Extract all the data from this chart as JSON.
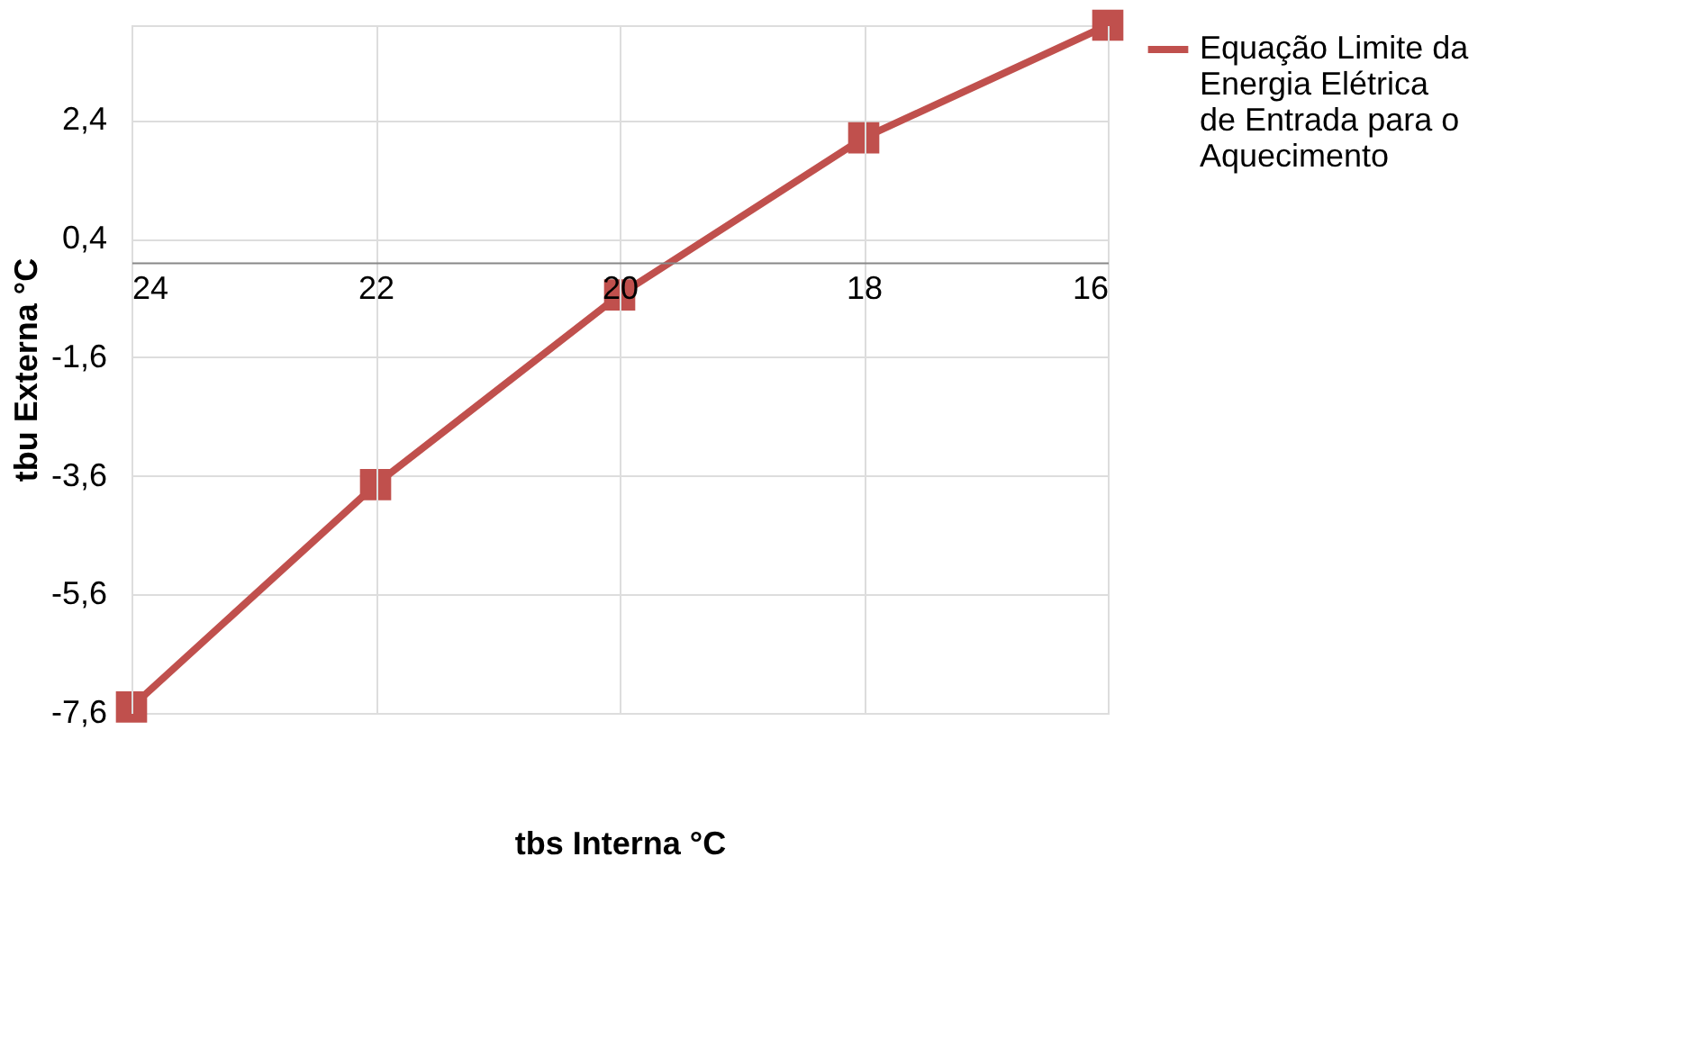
{
  "chart_data": {
    "type": "line",
    "xlabel": "tbs Interna °C",
    "ylabel": "tbu Externa °C",
    "categories": [
      "24",
      "22",
      "20",
      "18",
      "16"
    ],
    "series": [
      {
        "name": "Equação Limite da Energia Elétrica de Entrada para o Aquecimento",
        "color": "#c0504d",
        "values": [
          -7.5,
          -3.75,
          -0.55,
          2.1,
          4.0
        ]
      }
    ],
    "ylim": [
      -7.6,
      4.0
    ],
    "yticks": [
      {
        "value": -7.6,
        "label": "-7,6"
      },
      {
        "value": -5.6,
        "label": "-5,6"
      },
      {
        "value": -3.6,
        "label": "-3,6"
      },
      {
        "value": -1.6,
        "label": "-1,6"
      },
      {
        "value": 0.4,
        "label": "0,4"
      },
      {
        "value": 2.4,
        "label": "2,4"
      }
    ],
    "grid": true,
    "legend": "right",
    "marker": "square",
    "line_style": "solid"
  }
}
